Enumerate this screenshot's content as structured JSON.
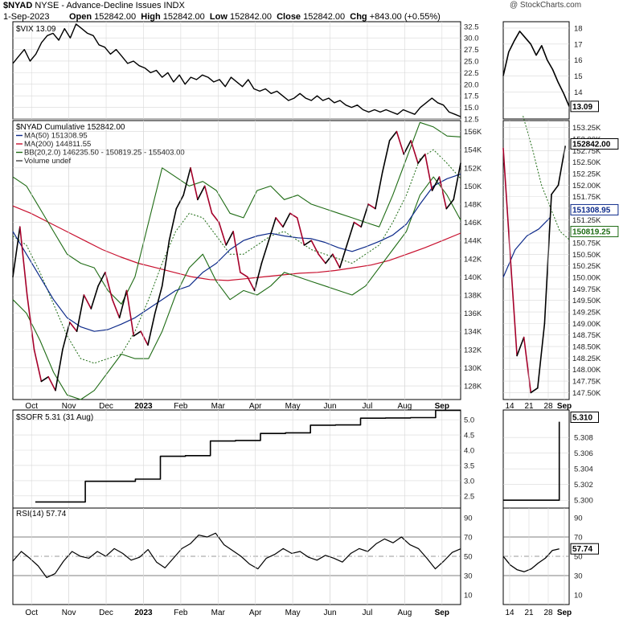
{
  "header": {
    "symbol": "$NYAD",
    "name": "NYSE - Advance-Decline Issues",
    "exchange": "INDX",
    "watermark": "@ StockCharts.com",
    "date": "1-Sep-2023",
    "open_label": "Open",
    "open": "152842.00",
    "high_label": "High",
    "high": "152842.00",
    "low_label": "Low",
    "low": "152842.00",
    "close_label": "Close",
    "close": "152842.00",
    "chg_label": "Chg",
    "chg": "+843.00 (+0.55%)"
  },
  "colors": {
    "price": "#000000",
    "down": "#a5002a",
    "ma50": "#0d2a8a",
    "ma200": "#c8102e",
    "bb": "#1e6b14",
    "grid": "#d8d8d8",
    "rsi_extreme": "#2e8b2e"
  },
  "chart_data": [
    {
      "id": "vix",
      "type": "line",
      "legend": "$VIX 13.09",
      "last_value_box": "13.09",
      "ylim": [
        12.5,
        33.5
      ],
      "y_ticks": [
        "12.5",
        "15.0",
        "17.5",
        "20.0",
        "22.5",
        "25.0",
        "27.5",
        "30.0",
        "32.5"
      ],
      "series": [
        {
          "values": [
            24.5,
            26,
            27.5,
            25,
            26.5,
            29,
            30.5,
            31,
            29.5,
            32,
            30,
            33,
            32,
            31,
            30.5,
            28.5,
            28,
            26.5,
            27.5,
            26,
            24.5,
            25,
            24,
            23.5,
            22.5,
            23,
            21.5,
            22.5,
            20.5,
            22,
            20,
            21.5,
            21,
            22,
            21.5,
            20.5,
            21,
            19.5,
            21.5,
            20.5,
            19.5,
            21,
            19,
            18.5,
            19,
            18,
            18.5,
            17.5,
            16.5,
            17,
            18,
            17,
            16.5,
            17.5,
            16.5,
            17,
            16,
            16.5,
            15.5,
            15,
            15.5,
            14.5,
            14,
            14.5,
            14,
            14.5,
            14,
            13.5,
            14.5,
            14,
            13.5,
            15,
            16,
            17,
            16,
            15.5,
            14,
            13.5,
            13
          ]
        }
      ]
    },
    {
      "id": "vix_zoom",
      "type": "line",
      "ylim": [
        12.3,
        18.4
      ],
      "y_ticks": [
        "13",
        "14",
        "15",
        "16",
        "17",
        "18"
      ],
      "x_ticks": [
        "14",
        "21",
        "28",
        "Sep"
      ],
      "series": [
        {
          "values": [
            15,
            16.5,
            17.2,
            17.8,
            17.4,
            17,
            16.3,
            16.9,
            16,
            15.4,
            14.6,
            13.9,
            13.09
          ]
        }
      ]
    },
    {
      "id": "nyad",
      "type": "line",
      "legend": [
        "$NYAD Cumulative 152842.00",
        "MA(50) 151308.95",
        "MA(200) 144811.55",
        "BB(20,2.0) 146235.50 - 150819.25 - 155403.00",
        "Volume undef"
      ],
      "ylim": [
        126500,
        157200
      ],
      "y_ticks": [
        "128K",
        "130K",
        "132K",
        "134K",
        "136K",
        "138K",
        "140K",
        "142K",
        "144K",
        "146K",
        "148K",
        "150K",
        "152K",
        "154K",
        "156K"
      ],
      "x_ticks": [
        "Oct",
        "Nov",
        "Dec",
        "2023",
        "Feb",
        "Mar",
        "Apr",
        "May",
        "Jun",
        "Jul",
        "Aug",
        "Sep"
      ],
      "series": [
        {
          "name": "$NYAD Cumulative",
          "values": [
            140000,
            145500,
            138000,
            132000,
            128500,
            129000,
            127500,
            132000,
            135000,
            134000,
            138000,
            136500,
            139000,
            140500,
            137500,
            135500,
            138500,
            133500,
            134000,
            132500,
            136000,
            139000,
            144000,
            147500,
            149000,
            152000,
            148500,
            150000,
            147000,
            146000,
            143500,
            145000,
            140500,
            140000,
            138500,
            141500,
            144000,
            146500,
            145500,
            147000,
            146500,
            143500,
            144000,
            142500,
            141500,
            142500,
            141000,
            143500,
            146000,
            145500,
            148000,
            147500,
            151500,
            155000,
            156000,
            153500,
            155000,
            152500,
            153500,
            149500,
            151000,
            147500,
            148500,
            152500
          ]
        },
        {
          "name": "MA(50)",
          "values": [
            145000,
            142500,
            140000,
            137500,
            135500,
            134500,
            134000,
            134200,
            134800,
            135500,
            136500,
            137500,
            138500,
            139000,
            140500,
            141500,
            143000,
            144000,
            144500,
            144800,
            144500,
            144300,
            144200,
            143800,
            143200,
            142800,
            143300,
            143900,
            144600,
            145800,
            148000,
            150000,
            150800,
            151308.95
          ]
        },
        {
          "name": "MA(200)",
          "values": [
            147800,
            147000,
            146000,
            145000,
            144000,
            143000,
            142200,
            141500,
            141000,
            140500,
            140000,
            139700,
            139600,
            139800,
            140000,
            140200,
            140400,
            140500,
            140700,
            141000,
            141300,
            141800,
            142500,
            143200,
            144000,
            144811.55
          ]
        },
        {
          "name": "BB upper",
          "values": [
            151000,
            150000,
            147500,
            145000,
            142500,
            141500,
            141000,
            138500,
            137000,
            140000,
            146000,
            152000,
            151000,
            150000,
            150500,
            149500,
            147000,
            146500,
            149500,
            150000,
            148500,
            149000,
            148000,
            147500,
            147000,
            146500,
            146000,
            145500,
            149000,
            153000,
            157000,
            156500,
            155500,
            155403
          ]
        },
        {
          "name": "BB middle",
          "values": [
            144500,
            143500,
            140500,
            137000,
            133500,
            131000,
            130500,
            131000,
            131500,
            134000,
            137500,
            141500,
            145000,
            147000,
            146500,
            144500,
            142500,
            142500,
            143500,
            144500,
            145000,
            144000,
            143000,
            142500,
            142000,
            141500,
            142500,
            143500,
            146000,
            149000,
            153000,
            154000,
            152500,
            150819.25
          ]
        },
        {
          "name": "BB lower",
          "values": [
            137500,
            136000,
            133000,
            129500,
            127000,
            126500,
            127500,
            129500,
            131500,
            131000,
            131000,
            134000,
            138000,
            141000,
            142500,
            139500,
            137500,
            138500,
            138000,
            139000,
            140500,
            140000,
            139500,
            139000,
            138500,
            138000,
            139000,
            141000,
            143000,
            145000,
            149000,
            151000,
            149000,
            146235.5
          ]
        }
      ]
    },
    {
      "id": "nyad_zoom",
      "type": "line",
      "ylim": [
        147350,
        153400
      ],
      "y_ticks": [
        "147.50K",
        "147.75K",
        "148.00K",
        "148.25K",
        "148.50K",
        "148.75K",
        "149.00K",
        "149.25K",
        "149.50K",
        "149.75K",
        "150.00K",
        "150.25K",
        "150.50K",
        "150.75K",
        "151.00K",
        "151.25K",
        "151.50K",
        "151.75K",
        "152.00K",
        "152.25K",
        "152.50K",
        "152.75K",
        "153.00K",
        "153.25K"
      ],
      "x_ticks": [
        "14",
        "21",
        "28",
        "Sep"
      ],
      "value_boxes": [
        "152842.00",
        "151308.95",
        "150819.25"
      ],
      "series": [
        {
          "name": "$NYAD Cumulative",
          "values": [
            152800,
            150500,
            148300,
            148700,
            147500,
            147600,
            149000,
            151800,
            152000,
            152842
          ]
        },
        {
          "name": "BB middle",
          "values": [
            153500,
            152800,
            152000,
            151500,
            151000,
            150819.25
          ]
        },
        {
          "name": "MA(50)",
          "values": [
            150000,
            150600,
            150900,
            151050,
            151308.95
          ]
        }
      ]
    },
    {
      "id": "sofr",
      "type": "line",
      "legend": "$SOFR 5.31 (31 Aug)",
      "ylim": [
        2.1,
        5.32
      ],
      "y_ticks": [
        "2.5",
        "3.0",
        "3.5",
        "4.0",
        "4.5",
        "5.0"
      ],
      "series": [
        {
          "values": [
            2.3,
            2.3,
            2.98,
            2.98,
            3.05,
            3.8,
            3.82,
            4.3,
            4.32,
            4.55,
            4.57,
            4.82,
            4.83,
            5.05,
            5.06,
            5.07,
            5.31,
            5.31
          ]
        }
      ]
    },
    {
      "id": "sofr_zoom",
      "type": "line",
      "ylim": [
        5.299,
        5.3115
      ],
      "y_ticks": [
        "5.300",
        "5.302",
        "5.304",
        "5.306",
        "5.308"
      ],
      "last_value_box": "5.310",
      "series": [
        {
          "values": [
            5.3,
            5.3,
            5.3,
            5.3,
            5.3,
            5.31
          ]
        }
      ]
    },
    {
      "id": "rsi",
      "type": "line",
      "legend": "RSI(14) 57.74",
      "last_value_box": "57.74",
      "ylim": [
        0,
        100
      ],
      "y_ticks": [
        "10",
        "30",
        "50",
        "70",
        "90"
      ],
      "x_ticks": [
        "Oct",
        "Nov",
        "Dec",
        "2023",
        "Feb",
        "Mar",
        "Apr",
        "May",
        "Jun",
        "Jul",
        "Aug",
        "Sep"
      ],
      "series": [
        {
          "values": [
            45,
            55,
            48,
            40,
            28,
            32,
            45,
            55,
            50,
            48,
            55,
            50,
            58,
            53,
            46,
            49,
            57,
            44,
            38,
            48,
            58,
            63,
            72,
            70,
            74,
            62,
            56,
            50,
            42,
            37,
            48,
            52,
            58,
            53,
            55,
            49,
            46,
            51,
            48,
            44,
            53,
            58,
            55,
            63,
            68,
            64,
            70,
            62,
            58,
            48,
            37,
            45,
            54,
            57.74
          ]
        }
      ]
    },
    {
      "id": "rsi_zoom",
      "type": "line",
      "ylim": [
        0,
        100
      ],
      "y_ticks": [
        "10",
        "30",
        "50",
        "70",
        "90"
      ],
      "x_ticks": [
        "14",
        "21",
        "28",
        "Sep"
      ],
      "series": [
        {
          "values": [
            50,
            41,
            36,
            34,
            37,
            43,
            48,
            56,
            57.74
          ]
        }
      ]
    }
  ]
}
